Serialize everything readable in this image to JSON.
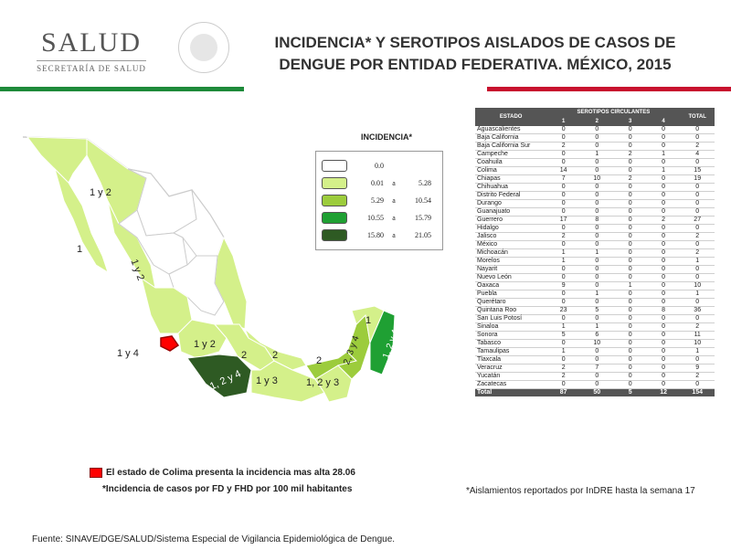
{
  "header": {
    "logo_main": "SALUD",
    "logo_sub": "SECRETARÍA DE SALUD",
    "title_line1": "INCIDENCIA* Y SEROTIPOS AISLADOS DE CASOS DE",
    "title_line2": "DENGUE POR ENTIDAD FEDERATIVA. MÉXICO, 2015",
    "tricolor": [
      "#1e8a3a",
      "#ffffff",
      "#c8102e"
    ]
  },
  "legend": {
    "title": "INCIDENCIA*",
    "items": [
      {
        "a": "0.0",
        "sep": "",
        "b": "",
        "color": "#ffffff"
      },
      {
        "a": "0.01",
        "sep": "a",
        "b": "5.28",
        "color": "#d4f08a"
      },
      {
        "a": "5.29",
        "sep": "a",
        "b": "10.54",
        "color": "#9ccc3c"
      },
      {
        "a": "10.55",
        "sep": "a",
        "b": "15.79",
        "color": "#1fa033"
      },
      {
        "a": "15.80",
        "sep": "a",
        "b": "21.05",
        "color": "#2e5a23"
      }
    ]
  },
  "map_labels": {
    "baja_norte": "1 y 2",
    "baja_sur": "1",
    "sonora": "1 y 2",
    "colima": "1 y 4",
    "michoacan": "1 y 2",
    "guerrero": "1, 2 y 4",
    "mexico": "2",
    "morelos": "1 y 3",
    "puebla": "2",
    "oaxaca": "1, 2 y 3",
    "chiapas": "2",
    "tabasco": "2, 3 y 4",
    "campeche_yuc": "1",
    "qroo": "1, 2 y 4"
  },
  "notes": {
    "colima": "El estado de Colima presenta la incidencia mas alta 28.06",
    "incidence": "*Incidencia de casos por FD y FHD por 100 mil habitantes",
    "isolations": "*Aislamientos reportados por  InDRE  hasta la semana 17",
    "source": "Fuente: SINAVE/DGE/SALUD/Sistema Especial de Vigilancia Epidemiológica de Dengue.",
    "colima_color": "#ff0000"
  },
  "table": {
    "header_estado": "ESTADO",
    "header_group": "SEROTIPOS CIRCULANTES",
    "header_total": "TOTAL",
    "serotypes": [
      "1",
      "2",
      "3",
      "4"
    ],
    "rows": [
      [
        "Aguascalientes",
        "0",
        "0",
        "0",
        "0",
        "0"
      ],
      [
        "Baja California",
        "0",
        "0",
        "0",
        "0",
        "0"
      ],
      [
        "Baja California Sur",
        "2",
        "0",
        "0",
        "0",
        "2"
      ],
      [
        "Campeche",
        "0",
        "1",
        "2",
        "1",
        "4"
      ],
      [
        "Coahuila",
        "0",
        "0",
        "0",
        "0",
        "0"
      ],
      [
        "Colima",
        "14",
        "0",
        "0",
        "1",
        "15"
      ],
      [
        "Chiapas",
        "7",
        "10",
        "2",
        "0",
        "19"
      ],
      [
        "Chihuahua",
        "0",
        "0",
        "0",
        "0",
        "0"
      ],
      [
        "Distrito Federal",
        "0",
        "0",
        "0",
        "0",
        "0"
      ],
      [
        "Durango",
        "0",
        "0",
        "0",
        "0",
        "0"
      ],
      [
        "Guanajuato",
        "0",
        "0",
        "0",
        "0",
        "0"
      ],
      [
        "Guerrero",
        "17",
        "8",
        "0",
        "2",
        "27"
      ],
      [
        "Hidalgo",
        "0",
        "0",
        "0",
        "0",
        "0"
      ],
      [
        "Jalisco",
        "2",
        "0",
        "0",
        "0",
        "2"
      ],
      [
        "México",
        "0",
        "0",
        "0",
        "0",
        "0"
      ],
      [
        "Michoacán",
        "1",
        "1",
        "0",
        "0",
        "2"
      ],
      [
        "Morelos",
        "1",
        "0",
        "0",
        "0",
        "1"
      ],
      [
        "Nayarit",
        "0",
        "0",
        "0",
        "0",
        "0"
      ],
      [
        "Nuevo León",
        "0",
        "0",
        "0",
        "0",
        "0"
      ],
      [
        "Oaxaca",
        "9",
        "0",
        "1",
        "0",
        "10"
      ],
      [
        "Puebla",
        "0",
        "1",
        "0",
        "0",
        "1"
      ],
      [
        "Querétaro",
        "0",
        "0",
        "0",
        "0",
        "0"
      ],
      [
        "Quintana Roo",
        "23",
        "5",
        "0",
        "8",
        "36"
      ],
      [
        "San Luis Potosí",
        "0",
        "0",
        "0",
        "0",
        "0"
      ],
      [
        "Sinaloa",
        "1",
        "1",
        "0",
        "0",
        "2"
      ],
      [
        "Sonora",
        "5",
        "6",
        "0",
        "0",
        "11"
      ],
      [
        "Tabasco",
        "0",
        "10",
        "0",
        "0",
        "10"
      ],
      [
        "Tamaulipas",
        "1",
        "0",
        "0",
        "0",
        "1"
      ],
      [
        "Tlaxcala",
        "0",
        "0",
        "0",
        "0",
        "0"
      ],
      [
        "Veracruz",
        "2",
        "7",
        "0",
        "0",
        "9"
      ],
      [
        "Yucatán",
        "2",
        "0",
        "0",
        "0",
        "2"
      ],
      [
        "Zacatecas",
        "0",
        "0",
        "0",
        "0",
        "0"
      ]
    ],
    "total": [
      "Total",
      "87",
      "50",
      "5",
      "12",
      "154"
    ]
  }
}
